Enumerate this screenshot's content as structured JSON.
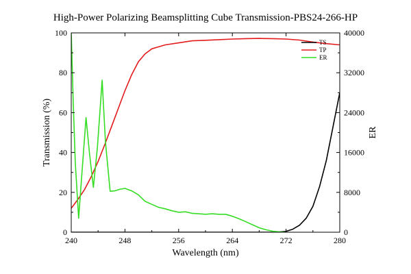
{
  "chart_data": {
    "type": "line",
    "title": "High-Power Polarizing Beamsplitting Cube Transmission-PBS24-266-HP",
    "xlabel": "Wavelength (nm)",
    "ylabel": "Transmission (%)",
    "y2label": "ER",
    "xlim": [
      240,
      280
    ],
    "ylim": [
      0,
      100
    ],
    "y2lim": [
      0,
      40000
    ],
    "xticks": [
      240,
      248,
      256,
      264,
      272,
      280
    ],
    "yticks": [
      0,
      20,
      40,
      60,
      80,
      100
    ],
    "y2ticks": [
      0,
      8000,
      16000,
      24000,
      32000,
      40000
    ],
    "grid": false,
    "legend_position": "top-right",
    "series": [
      {
        "name": "TS",
        "axis": "left",
        "color": "#000000",
        "x": [
          240,
          244,
          248,
          252,
          256,
          260,
          264,
          268,
          270,
          271,
          272,
          273,
          274,
          275,
          276,
          277,
          278,
          279,
          280
        ],
        "y": [
          0,
          0,
          0,
          0,
          0,
          0,
          0,
          0,
          0,
          0.1,
          0.4,
          1.5,
          3.5,
          7,
          13,
          23,
          36,
          53,
          70
        ]
      },
      {
        "name": "TP",
        "axis": "left",
        "color": "#e41a1c",
        "x": [
          240,
          241,
          242,
          243,
          244,
          245,
          246,
          247,
          248,
          249,
          250,
          251,
          252,
          253,
          254,
          256,
          258,
          260,
          262,
          264,
          266,
          268,
          270,
          272,
          274,
          276,
          278,
          280
        ],
        "y": [
          12,
          16.5,
          21.5,
          28,
          35.5,
          44,
          53,
          62,
          71,
          79,
          85.5,
          89.5,
          92,
          93,
          94,
          95,
          96,
          96.3,
          96.6,
          96.9,
          97.1,
          97.2,
          97.1,
          96.9,
          96.4,
          95.4,
          94.6,
          94
        ]
      },
      {
        "name": "ER",
        "axis": "right",
        "color": "#33dd22",
        "x": [
          240,
          240.3,
          240.6,
          241.1,
          241.6,
          242.2,
          242.7,
          243.3,
          243.9,
          244.6,
          245.1,
          245.8,
          246.5,
          247.2,
          248,
          249,
          250,
          251,
          252,
          253,
          254,
          255,
          256,
          257,
          258,
          259,
          260,
          261,
          262,
          263,
          264,
          265,
          266,
          267,
          268,
          269,
          270,
          271,
          272
        ],
        "y": [
          40000,
          26000,
          14000,
          2800,
          12000,
          23000,
          16000,
          9000,
          17000,
          30500,
          18000,
          8200,
          8300,
          8600,
          8800,
          8300,
          7500,
          6200,
          5600,
          5000,
          4700,
          4300,
          4000,
          4100,
          3800,
          3700,
          3600,
          3700,
          3600,
          3600,
          3200,
          2700,
          2100,
          1500,
          900,
          500,
          200,
          60,
          0
        ]
      }
    ]
  }
}
